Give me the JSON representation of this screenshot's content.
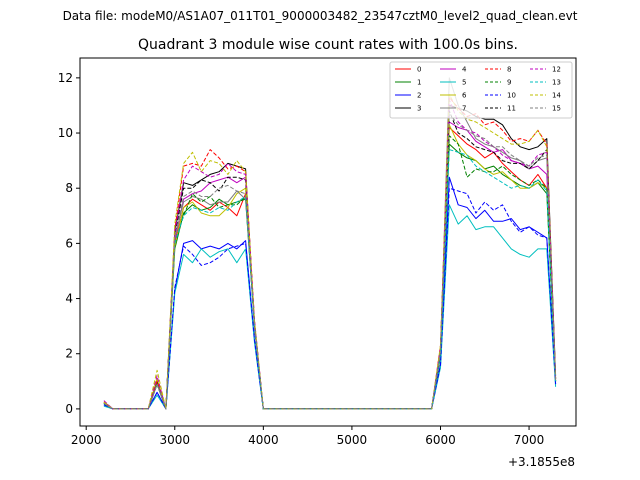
{
  "figure": {
    "suptitle": "Data file: modeM0/AS1A07_011T01_9000003482_23547cztM0_level2_quad_clean.evt"
  },
  "chart_data": {
    "type": "line",
    "title": "Quadrant 3 module wise count rates with 100.0s bins.",
    "xlabel": "",
    "ylabel": "",
    "x_offset_label": "+3.1855e8",
    "xlim": [
      1930,
      7530
    ],
    "ylim": [
      -0.62,
      12.72
    ],
    "x_ticks": [
      2000,
      3000,
      4000,
      5000,
      6000,
      7000
    ],
    "x_tick_labels": [
      "2000",
      "3000",
      "4000",
      "5000",
      "6000",
      "7000"
    ],
    "y_ticks": [
      0,
      2,
      4,
      6,
      8,
      10,
      12
    ],
    "y_tick_labels": [
      "0",
      "2",
      "4",
      "6",
      "8",
      "10",
      "12"
    ],
    "legend_position": "top-right",
    "legend_columns": 4,
    "x": [
      2200,
      2300,
      2400,
      2500,
      2600,
      2700,
      2800,
      2900,
      3000,
      3100,
      3200,
      3300,
      3400,
      3500,
      3600,
      3700,
      3800,
      3900,
      4000,
      4100,
      4200,
      4300,
      4400,
      4500,
      4600,
      4700,
      4800,
      4900,
      5000,
      5100,
      5200,
      5300,
      5400,
      5500,
      5600,
      5700,
      5800,
      5900,
      6000,
      6100,
      6200,
      6300,
      6400,
      6500,
      6600,
      6700,
      6800,
      6900,
      7000,
      7100,
      7200,
      7300
    ],
    "series": [
      {
        "name": "0",
        "color": "#ff0000",
        "dash": false,
        "values": [
          0.25,
          0,
          0,
          0,
          0,
          0,
          1.0,
          0,
          6.0,
          7.3,
          7.6,
          7.4,
          7.2,
          7.5,
          7.3,
          7.0,
          7.8,
          3.0,
          0,
          0,
          0,
          0,
          0,
          0,
          0,
          0,
          0,
          0,
          0,
          0,
          0,
          0,
          0,
          0,
          0,
          0,
          0,
          0,
          2.0,
          10.2,
          9.9,
          9.6,
          9.4,
          9.1,
          9.3,
          8.9,
          8.6,
          8.3,
          8.1,
          8.5,
          8.0,
          1.0
        ]
      },
      {
        "name": "1",
        "color": "#008000",
        "dash": false,
        "values": [
          0.2,
          0,
          0,
          0,
          0,
          0,
          0.9,
          0,
          5.8,
          7.1,
          7.4,
          7.2,
          7.3,
          7.6,
          7.4,
          7.5,
          7.6,
          3.0,
          0,
          0,
          0,
          0,
          0,
          0,
          0,
          0,
          0,
          0,
          0,
          0,
          0,
          0,
          0,
          0,
          0,
          0,
          0,
          0,
          1.9,
          9.6,
          9.3,
          9.1,
          9.0,
          8.7,
          8.8,
          8.5,
          8.3,
          8.1,
          8.0,
          8.2,
          7.8,
          1.0
        ]
      },
      {
        "name": "2",
        "color": "#0000ff",
        "dash": false,
        "values": [
          0.15,
          0,
          0,
          0,
          0,
          0,
          0.6,
          0,
          4.3,
          6.0,
          6.1,
          5.8,
          5.9,
          5.8,
          6.0,
          5.8,
          6.1,
          2.5,
          0,
          0,
          0,
          0,
          0,
          0,
          0,
          0,
          0,
          0,
          0,
          0,
          0,
          0,
          0,
          0,
          0,
          0,
          0,
          0,
          1.6,
          8.4,
          7.4,
          7.3,
          6.9,
          7.2,
          6.8,
          6.8,
          6.9,
          6.5,
          6.6,
          6.4,
          6.2,
          0.9
        ]
      },
      {
        "name": "3",
        "color": "#000000",
        "dash": false,
        "values": [
          0.2,
          0,
          0,
          0,
          0,
          0,
          1.0,
          0,
          6.4,
          8.2,
          8.1,
          8.3,
          8.5,
          8.6,
          8.9,
          8.8,
          8.7,
          3.0,
          0,
          0,
          0,
          0,
          0,
          0,
          0,
          0,
          0,
          0,
          0,
          0,
          0,
          0,
          0,
          0,
          0,
          0,
          0,
          0,
          2.2,
          11.0,
          10.9,
          10.8,
          10.6,
          10.5,
          10.5,
          10.3,
          9.8,
          9.5,
          9.4,
          9.5,
          9.8,
          1.2
        ]
      },
      {
        "name": "4",
        "color": "#bf00bf",
        "dash": false,
        "values": [
          0.2,
          0,
          0,
          0,
          0,
          0,
          0.9,
          0,
          6.1,
          7.6,
          7.8,
          7.9,
          8.2,
          8.3,
          8.4,
          8.2,
          8.4,
          3.0,
          0,
          0,
          0,
          0,
          0,
          0,
          0,
          0,
          0,
          0,
          0,
          0,
          0,
          0,
          0,
          0,
          0,
          0,
          0,
          0,
          2.0,
          10.4,
          10.2,
          10.1,
          9.7,
          9.5,
          9.3,
          9.4,
          9.0,
          8.9,
          8.7,
          8.8,
          8.5,
          1.1
        ]
      },
      {
        "name": "5",
        "color": "#00bfbf",
        "dash": false,
        "values": [
          0.1,
          0,
          0,
          0,
          0,
          0,
          0.5,
          0,
          4.2,
          5.6,
          5.3,
          5.8,
          5.5,
          5.7,
          5.8,
          5.3,
          5.8,
          2.4,
          0,
          0,
          0,
          0,
          0,
          0,
          0,
          0,
          0,
          0,
          0,
          0,
          0,
          0,
          0,
          0,
          0,
          0,
          0,
          0,
          1.5,
          7.4,
          6.7,
          7.0,
          6.5,
          6.6,
          6.6,
          6.2,
          5.8,
          5.6,
          5.5,
          5.8,
          5.8,
          0.8
        ]
      },
      {
        "name": "6",
        "color": "#bfbf00",
        "dash": false,
        "values": [
          0.2,
          0,
          0,
          0,
          0,
          0,
          1.1,
          0,
          5.9,
          7.3,
          7.5,
          7.1,
          7.0,
          7.0,
          7.3,
          7.8,
          8.0,
          3.0,
          0,
          0,
          0,
          0,
          0,
          0,
          0,
          0,
          0,
          0,
          0,
          0,
          0,
          0,
          0,
          0,
          0,
          0,
          0,
          0,
          2.1,
          10.3,
          9.6,
          9.2,
          9.0,
          8.7,
          8.5,
          8.6,
          8.3,
          8.0,
          8.0,
          8.2,
          8.0,
          1.0
        ]
      },
      {
        "name": "7",
        "color": "#808080",
        "dash": false,
        "values": [
          0.2,
          0,
          0,
          0,
          0,
          0,
          0.9,
          0,
          6.2,
          7.5,
          7.7,
          7.6,
          7.4,
          7.5,
          7.5,
          7.9,
          7.6,
          3.0,
          0,
          0,
          0,
          0,
          0,
          0,
          0,
          0,
          0,
          0,
          0,
          0,
          0,
          0,
          0,
          0,
          0,
          0,
          0,
          0,
          2.1,
          12.0,
          11.0,
          10.4,
          9.8,
          9.6,
          9.5,
          9.3,
          9.1,
          9.0,
          8.7,
          9.0,
          9.1,
          1.1
        ]
      },
      {
        "name": "8",
        "color": "#ff0000",
        "dash": true,
        "values": [
          0.25,
          0,
          0,
          0,
          0,
          0,
          1.0,
          0,
          6.5,
          8.8,
          8.9,
          8.8,
          9.4,
          9.1,
          8.7,
          8.8,
          8.6,
          3.2,
          0,
          0,
          0,
          0,
          0,
          0,
          0,
          0,
          0,
          0,
          0,
          0,
          0,
          0,
          0,
          0,
          0,
          0,
          0,
          0,
          2.3,
          11.3,
          10.9,
          10.6,
          10.7,
          10.3,
          10.4,
          10.1,
          9.7,
          9.8,
          9.7,
          10.1,
          9.6,
          1.1
        ]
      },
      {
        "name": "9",
        "color": "#008000",
        "dash": true,
        "values": [
          0.2,
          0,
          0,
          0,
          0,
          0,
          0.9,
          0,
          6.0,
          7.0,
          7.8,
          7.5,
          7.7,
          7.3,
          7.4,
          7.4,
          7.7,
          3.0,
          0,
          0,
          0,
          0,
          0,
          0,
          0,
          0,
          0,
          0,
          0,
          0,
          0,
          0,
          0,
          0,
          0,
          0,
          0,
          0,
          2.0,
          9.9,
          9.6,
          8.4,
          8.7,
          8.6,
          8.6,
          8.8,
          8.5,
          8.3,
          8.1,
          8.3,
          8.0,
          1.0
        ]
      },
      {
        "name": "10",
        "color": "#0000ff",
        "dash": true,
        "values": [
          0.15,
          0,
          0,
          0,
          0,
          0,
          0.6,
          0,
          4.4,
          5.9,
          5.6,
          5.2,
          5.3,
          5.5,
          5.8,
          5.9,
          6.0,
          2.5,
          0,
          0,
          0,
          0,
          0,
          0,
          0,
          0,
          0,
          0,
          0,
          0,
          0,
          0,
          0,
          0,
          0,
          0,
          0,
          0,
          1.6,
          8.0,
          7.9,
          7.8,
          7.1,
          7.5,
          7.2,
          7.4,
          6.8,
          6.4,
          6.6,
          6.3,
          6.2,
          0.9
        ]
      },
      {
        "name": "11",
        "color": "#000000",
        "dash": true,
        "values": [
          0.2,
          0,
          0,
          0,
          0,
          0,
          0.9,
          0,
          6.3,
          8.0,
          8.0,
          8.3,
          8.2,
          7.9,
          8.4,
          8.4,
          8.3,
          3.1,
          0,
          0,
          0,
          0,
          0,
          0,
          0,
          0,
          0,
          0,
          0,
          0,
          0,
          0,
          0,
          0,
          0,
          0,
          0,
          0,
          2.1,
          10.8,
          10.0,
          9.8,
          9.5,
          9.4,
          9.3,
          9.0,
          8.9,
          8.9,
          8.7,
          9.0,
          9.4,
          1.1
        ]
      },
      {
        "name": "12",
        "color": "#bf00bf",
        "dash": true,
        "values": [
          0.3,
          0,
          0,
          0,
          0,
          0,
          1.2,
          0,
          6.4,
          8.3,
          8.8,
          8.6,
          8.4,
          8.5,
          8.9,
          8.6,
          8.5,
          3.2,
          0,
          0,
          0,
          0,
          0,
          0,
          0,
          0,
          0,
          0,
          0,
          0,
          0,
          0,
          0,
          0,
          0,
          0,
          0,
          0,
          2.2,
          11.2,
          10.4,
          10.1,
          10.0,
          9.7,
          9.5,
          9.2,
          9.0,
          8.9,
          8.8,
          9.2,
          9.3,
          1.1
        ]
      },
      {
        "name": "13",
        "color": "#00bfbf",
        "dash": true,
        "values": [
          0.2,
          0,
          0,
          0,
          0,
          0,
          0.9,
          0,
          6.0,
          7.0,
          7.3,
          7.2,
          7.1,
          7.3,
          7.2,
          7.5,
          7.7,
          3.0,
          0,
          0,
          0,
          0,
          0,
          0,
          0,
          0,
          0,
          0,
          0,
          0,
          0,
          0,
          0,
          0,
          0,
          0,
          0,
          0,
          2.0,
          9.4,
          9.3,
          9.2,
          8.8,
          8.6,
          8.4,
          8.2,
          8.0,
          8.1,
          8.0,
          8.3,
          7.9,
          1.0
        ]
      },
      {
        "name": "14",
        "color": "#bfbf00",
        "dash": true,
        "values": [
          0.25,
          0,
          0,
          0,
          0,
          0,
          1.4,
          0,
          6.7,
          8.9,
          9.3,
          8.6,
          9.0,
          8.9,
          8.5,
          9.0,
          8.6,
          3.2,
          0,
          0,
          0,
          0,
          0,
          0,
          0,
          0,
          0,
          0,
          0,
          0,
          0,
          0,
          0,
          0,
          0,
          0,
          0,
          0,
          2.3,
          11.4,
          10.8,
          10.5,
          10.4,
          10.2,
          10.0,
          9.8,
          9.6,
          9.6,
          9.7,
          10.1,
          9.5,
          1.1
        ]
      },
      {
        "name": "15",
        "color": "#808080",
        "dash": true,
        "values": [
          0.2,
          0,
          0,
          0,
          0,
          0,
          0.9,
          0,
          6.2,
          7.7,
          7.9,
          7.7,
          7.7,
          8.0,
          8.1,
          7.9,
          7.8,
          3.0,
          0,
          0,
          0,
          0,
          0,
          0,
          0,
          0,
          0,
          0,
          0,
          0,
          0,
          0,
          0,
          0,
          0,
          0,
          0,
          0,
          2.1,
          10.7,
          10.3,
          10.1,
          9.9,
          9.8,
          9.5,
          9.5,
          9.2,
          9.0,
          8.8,
          9.1,
          9.2,
          1.0
        ]
      }
    ]
  }
}
